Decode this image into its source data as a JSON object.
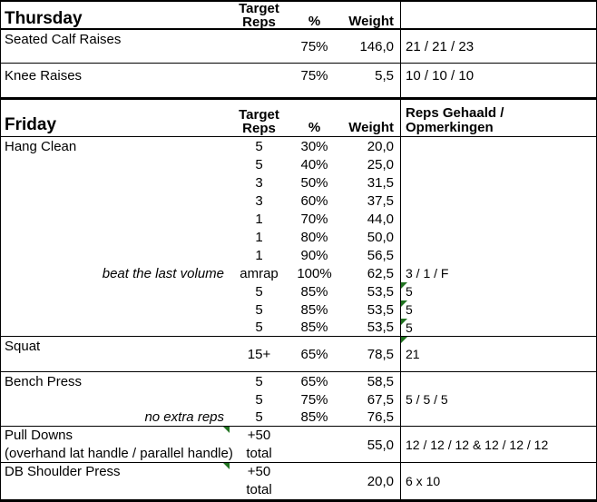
{
  "colors": {
    "flag_green": "#217321",
    "grid_border": "#000000",
    "background": "#FFFFFF",
    "text": "#000000"
  },
  "headers": {
    "target_top": "Target",
    "target_bottom": "Reps",
    "percent": "%",
    "weight": "Weight",
    "result_top": "Reps Gehaald /",
    "result_bottom": "Opmerkingen"
  },
  "thursday": {
    "title": "Thursday",
    "rows": [
      {
        "name": "Seated Calf Raises",
        "percent": "75%",
        "weight": "146,0",
        "result": "21 / 21 / 23"
      },
      {
        "name": "Knee Raises",
        "percent": "75%",
        "weight": "5,5",
        "result": "10 / 10 / 10"
      }
    ]
  },
  "friday": {
    "title": "Friday",
    "hang_clean": {
      "name": "Hang Clean",
      "sets": [
        {
          "target": "5",
          "percent": "30%",
          "weight": "20,0"
        },
        {
          "target": "5",
          "percent": "40%",
          "weight": "25,0"
        },
        {
          "target": "3",
          "percent": "50%",
          "weight": "31,5"
        },
        {
          "target": "3",
          "percent": "60%",
          "weight": "37,5"
        },
        {
          "target": "1",
          "percent": "70%",
          "weight": "44,0"
        },
        {
          "target": "1",
          "percent": "80%",
          "weight": "50,0"
        },
        {
          "target": "1",
          "percent": "90%",
          "weight": "56,5"
        },
        {
          "note": "beat the last volume",
          "target": "amrap",
          "percent": "100%",
          "weight": "62,5",
          "result": "3 / 1 / F"
        },
        {
          "target": "5",
          "percent": "85%",
          "weight": "53,5",
          "result": "5"
        },
        {
          "target": "5",
          "percent": "85%",
          "weight": "53,5",
          "result": "5"
        },
        {
          "target": "5",
          "percent": "85%",
          "weight": "53,5",
          "result": "5"
        }
      ]
    },
    "squat": {
      "name": "Squat",
      "target": "15+",
      "percent": "65%",
      "weight": "78,5",
      "result": "21"
    },
    "bench_press": {
      "name": "Bench Press",
      "sets": [
        {
          "target": "5",
          "percent": "65%",
          "weight": "58,5"
        },
        {
          "target": "5",
          "percent": "75%",
          "weight": "67,5",
          "result": "5 / 5 / 5"
        },
        {
          "note": "no extra reps",
          "target": "5",
          "percent": "85%",
          "weight": "76,5"
        }
      ]
    },
    "pull_downs": {
      "name": "Pull Downs",
      "name2": "(overhand lat handle / parallel handle)",
      "target_top": "+50",
      "target_bottom": "total",
      "weight": "55,0",
      "result": "12 / 12 / 12 & 12 / 12 / 12"
    },
    "db_shoulder_press": {
      "name": "DB Shoulder Press",
      "target_top": "+50",
      "target_bottom": "total",
      "weight": "20,0",
      "result": "6 x 10"
    }
  }
}
